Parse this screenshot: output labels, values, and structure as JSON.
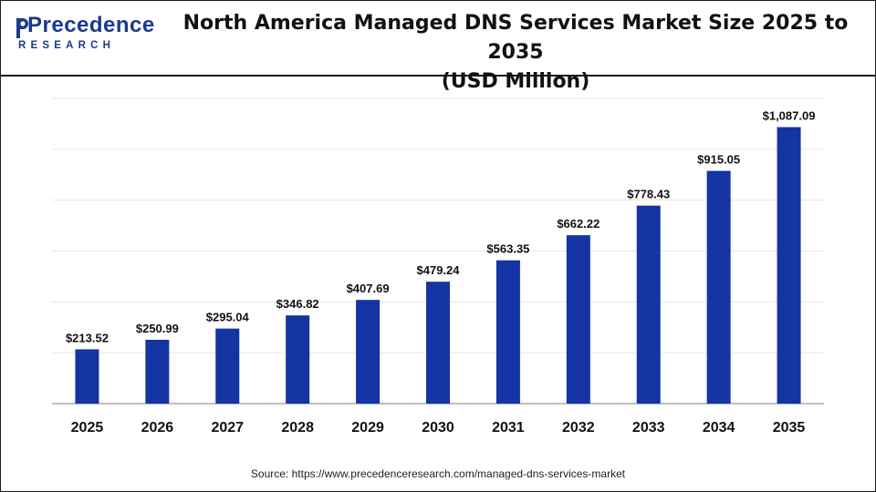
{
  "logo": {
    "name": "Precedence",
    "tagline": "RESEARCH"
  },
  "title_lines": [
    "North America Managed DNS Services Market Size 2025 to 2035",
    "(USD Million)"
  ],
  "source": "Source: https://www.precedenceresearch.com/managed-dns-services-market",
  "colors": {
    "bar": "#1434a4",
    "grid": "#e6e6e6",
    "axis": "#9a9a9a",
    "brand": "#1b3a8c"
  },
  "chart_data": {
    "type": "bar",
    "title": "North America Managed DNS Services Market Size 2025 to 2035 (USD Million)",
    "xlabel": "",
    "ylabel": "",
    "categories": [
      "2025",
      "2026",
      "2027",
      "2028",
      "2029",
      "2030",
      "2031",
      "2032",
      "2033",
      "2034",
      "2035"
    ],
    "values": [
      213.52,
      250.99,
      295.04,
      346.82,
      407.69,
      479.24,
      563.35,
      662.22,
      778.43,
      915.05,
      1087.09
    ],
    "data_labels": [
      "$213.52",
      "$250.99",
      "$295.04",
      "$346.82",
      "$407.69",
      "$479.24",
      "$563.35",
      "$662.22",
      "$778.43",
      "$915.05",
      "$1,087.09"
    ],
    "ylim": [
      0,
      1200
    ],
    "grid": true,
    "legend": "none"
  }
}
